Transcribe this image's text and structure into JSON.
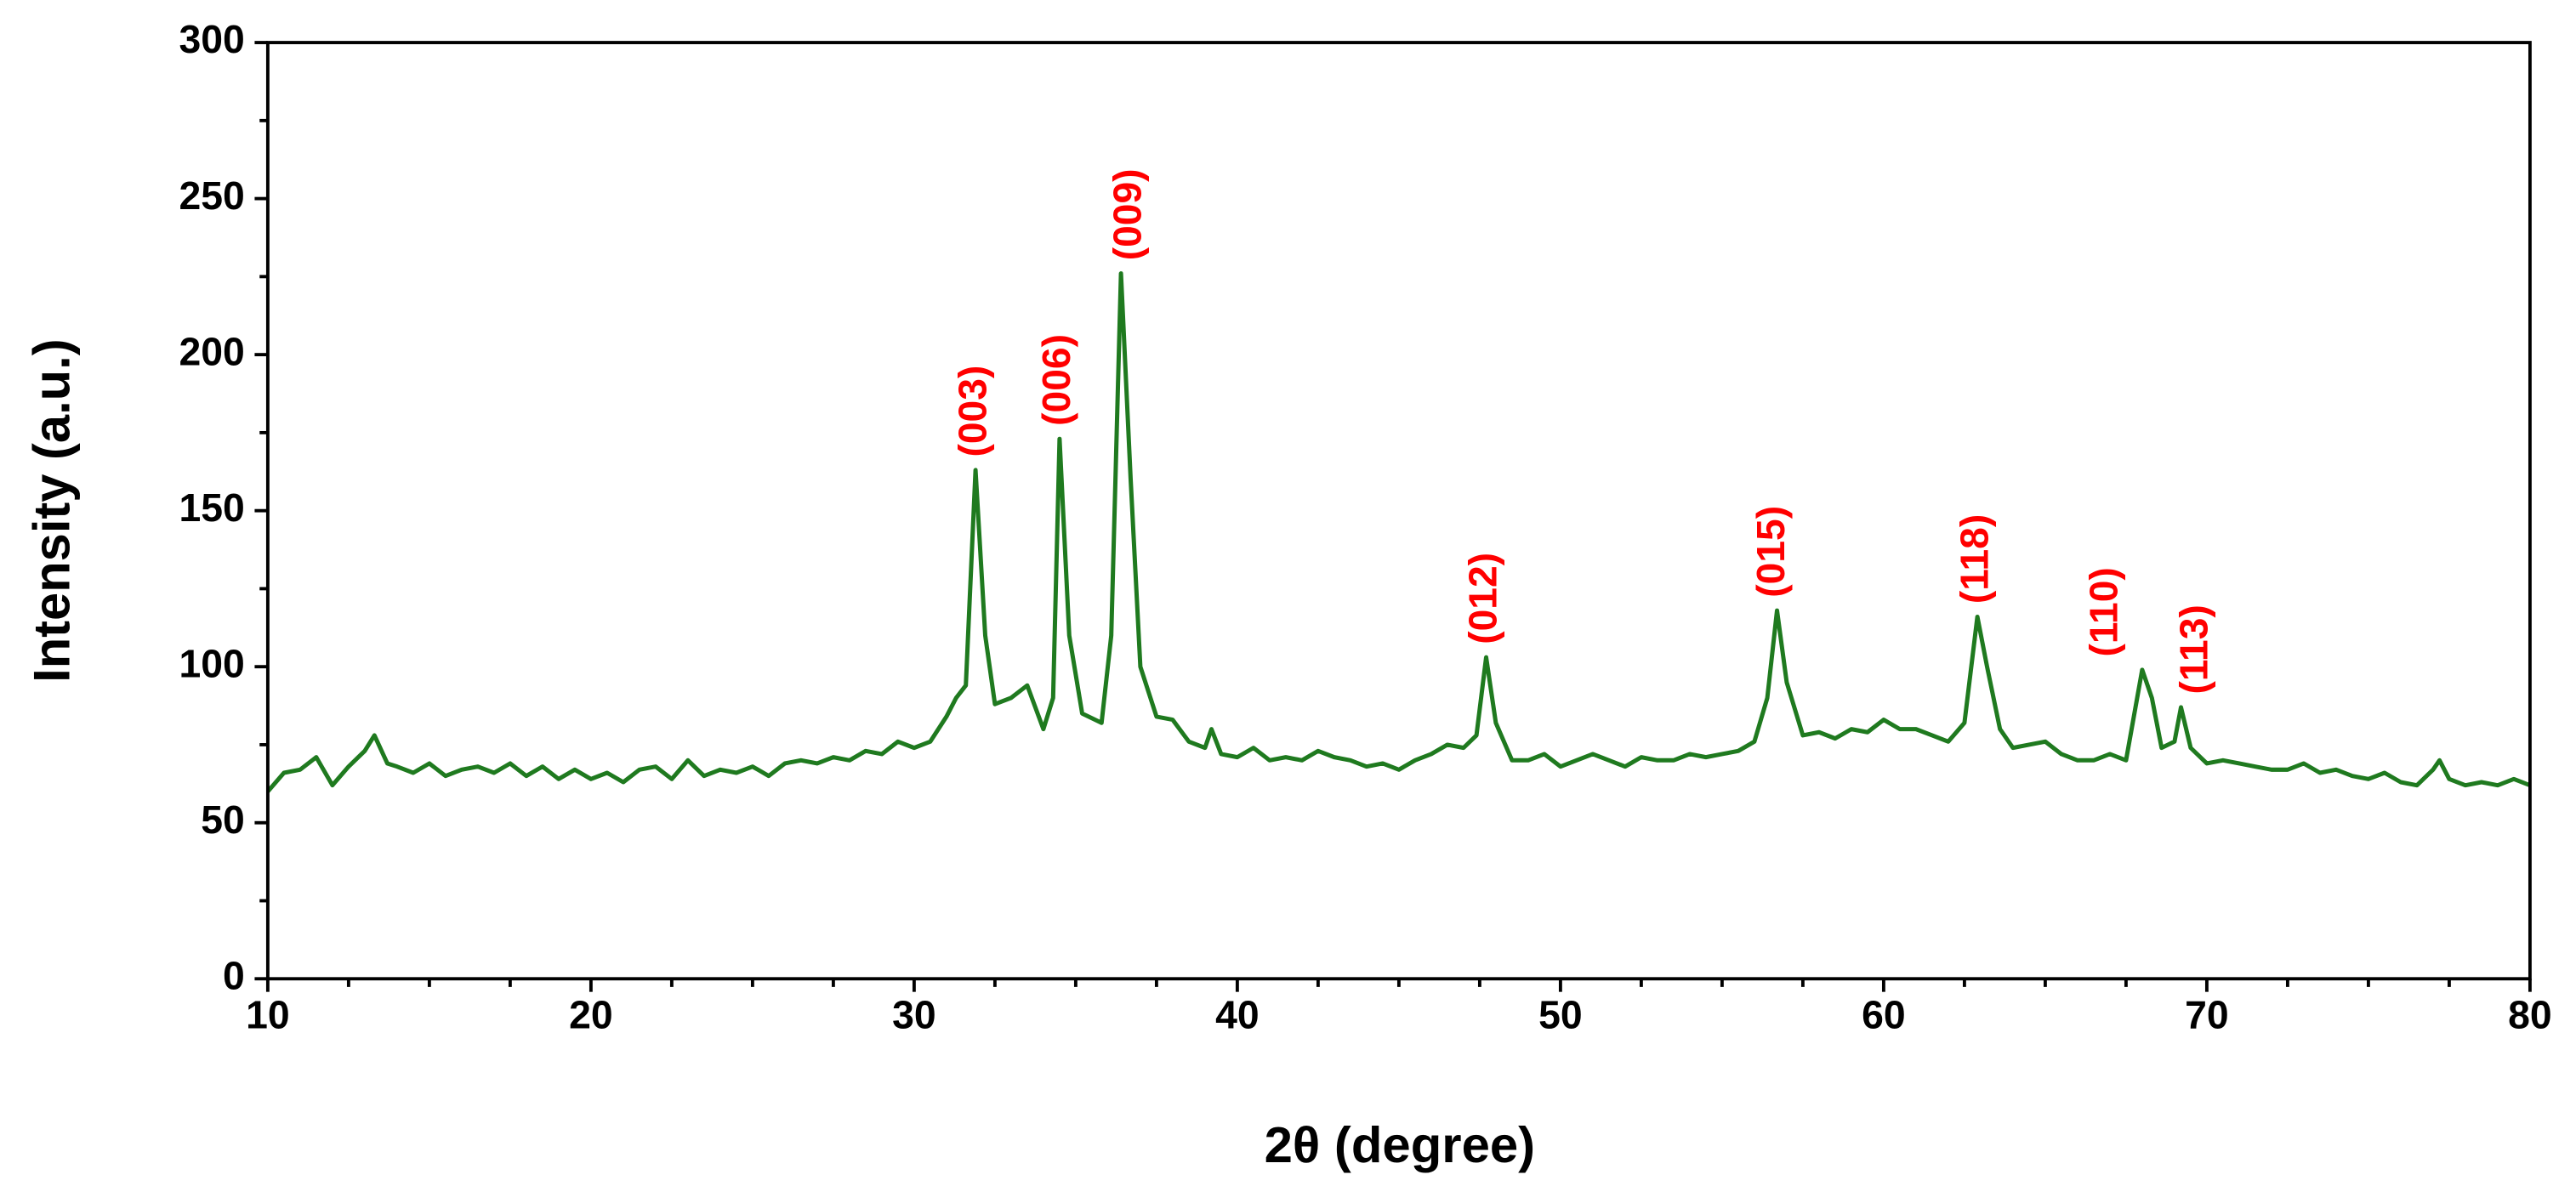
{
  "chart_data": {
    "type": "line",
    "xlabel": "2θ (degree)",
    "ylabel": "Intensity (a.u.)",
    "xlim": [
      10,
      80
    ],
    "xticks": [
      10,
      20,
      30,
      40,
      50,
      60,
      70,
      80
    ],
    "xminorticks": [
      12.5,
      15,
      17.5,
      22.5,
      25,
      27.5,
      32.5,
      35,
      37.5,
      42.5,
      45,
      47.5,
      52.5,
      55,
      57.5,
      62.5,
      65,
      67.5,
      72.5,
      75,
      77.5
    ],
    "ylim": [
      0,
      300
    ],
    "yticks": [
      0,
      50,
      100,
      150,
      200,
      250,
      300
    ],
    "yminorticks": [
      25,
      75,
      125,
      175,
      225,
      275
    ],
    "series": [
      {
        "color": "#1f7a1f",
        "x": [
          10,
          10.5,
          11,
          11.5,
          12,
          12.5,
          13,
          13.3,
          13.7,
          14,
          14.5,
          15,
          15.5,
          16,
          16.5,
          17,
          17.5,
          18,
          18.5,
          19,
          19.5,
          20,
          20.5,
          21,
          21.5,
          22,
          22.5,
          23,
          23.5,
          24,
          24.5,
          25,
          25.5,
          26,
          26.5,
          27,
          27.5,
          28,
          28.5,
          29,
          29.5,
          30,
          30.5,
          31,
          31.3,
          31.6,
          31.9,
          32.2,
          32.5,
          33,
          33.5,
          34,
          34.3,
          34.5,
          34.8,
          35.2,
          35.8,
          36.1,
          36.4,
          36.7,
          37,
          37.5,
          38,
          38.5,
          39,
          39.2,
          39.5,
          40,
          40.5,
          41,
          41.5,
          42,
          42.5,
          43,
          43.5,
          44,
          44.5,
          45,
          45.5,
          46,
          46.5,
          47,
          47.4,
          47.7,
          48,
          48.5,
          49,
          49.5,
          50,
          50.5,
          51,
          51.5,
          52,
          52.5,
          53,
          53.5,
          54,
          54.5,
          55,
          55.5,
          56,
          56.4,
          56.7,
          57,
          57.5,
          58,
          58.5,
          59,
          59.5,
          60,
          60.5,
          61,
          61.5,
          62,
          62.5,
          62.9,
          63.2,
          63.6,
          64,
          64.5,
          65,
          65.5,
          66,
          66.5,
          67,
          67.5,
          68,
          68.3,
          68.6,
          69,
          69.2,
          69.5,
          70,
          70.5,
          71,
          71.5,
          72,
          72.5,
          73,
          73.5,
          74,
          74.5,
          75,
          75.5,
          76,
          76.5,
          77,
          77.2,
          77.5,
          78,
          78.5,
          79,
          79.5,
          80
        ],
        "values": [
          60,
          66,
          67,
          71,
          62,
          68,
          73,
          78,
          69,
          68,
          66,
          69,
          65,
          67,
          68,
          66,
          69,
          65,
          68,
          64,
          67,
          64,
          66,
          63,
          67,
          68,
          64,
          70,
          65,
          67,
          66,
          68,
          65,
          69,
          70,
          69,
          71,
          70,
          73,
          72,
          76,
          74,
          76,
          84,
          90,
          94,
          163,
          110,
          88,
          90,
          94,
          80,
          90,
          173,
          110,
          85,
          82,
          110,
          226,
          160,
          100,
          84,
          83,
          76,
          74,
          80,
          72,
          71,
          74,
          70,
          71,
          70,
          73,
          71,
          70,
          68,
          69,
          67,
          70,
          72,
          75,
          74,
          78,
          103,
          82,
          70,
          70,
          72,
          68,
          70,
          72,
          70,
          68,
          71,
          70,
          70,
          72,
          71,
          72,
          73,
          76,
          90,
          118,
          95,
          78,
          79,
          77,
          80,
          79,
          83,
          80,
          80,
          78,
          76,
          82,
          116,
          100,
          80,
          74,
          75,
          76,
          72,
          70,
          70,
          72,
          70,
          99,
          90,
          74,
          76,
          87,
          74,
          69,
          70,
          69,
          68,
          67,
          67,
          69,
          66,
          67,
          65,
          64,
          66,
          63,
          62,
          67,
          70,
          64,
          62,
          63,
          62,
          64,
          62
        ]
      }
    ],
    "annotations": [
      {
        "text": "(003)",
        "x": 31.9
      },
      {
        "text": "(006)",
        "x": 34.5
      },
      {
        "text": "(009)",
        "x": 36.7
      },
      {
        "text": "(012)",
        "x": 47.7
      },
      {
        "text": "(015)",
        "x": 56.6
      },
      {
        "text": "(118)",
        "x": 62.9
      },
      {
        "text": "(110)",
        "x": 66.9
      },
      {
        "text": "(113)",
        "x": 69.7
      }
    ],
    "annotation_color": "#ff0000"
  }
}
